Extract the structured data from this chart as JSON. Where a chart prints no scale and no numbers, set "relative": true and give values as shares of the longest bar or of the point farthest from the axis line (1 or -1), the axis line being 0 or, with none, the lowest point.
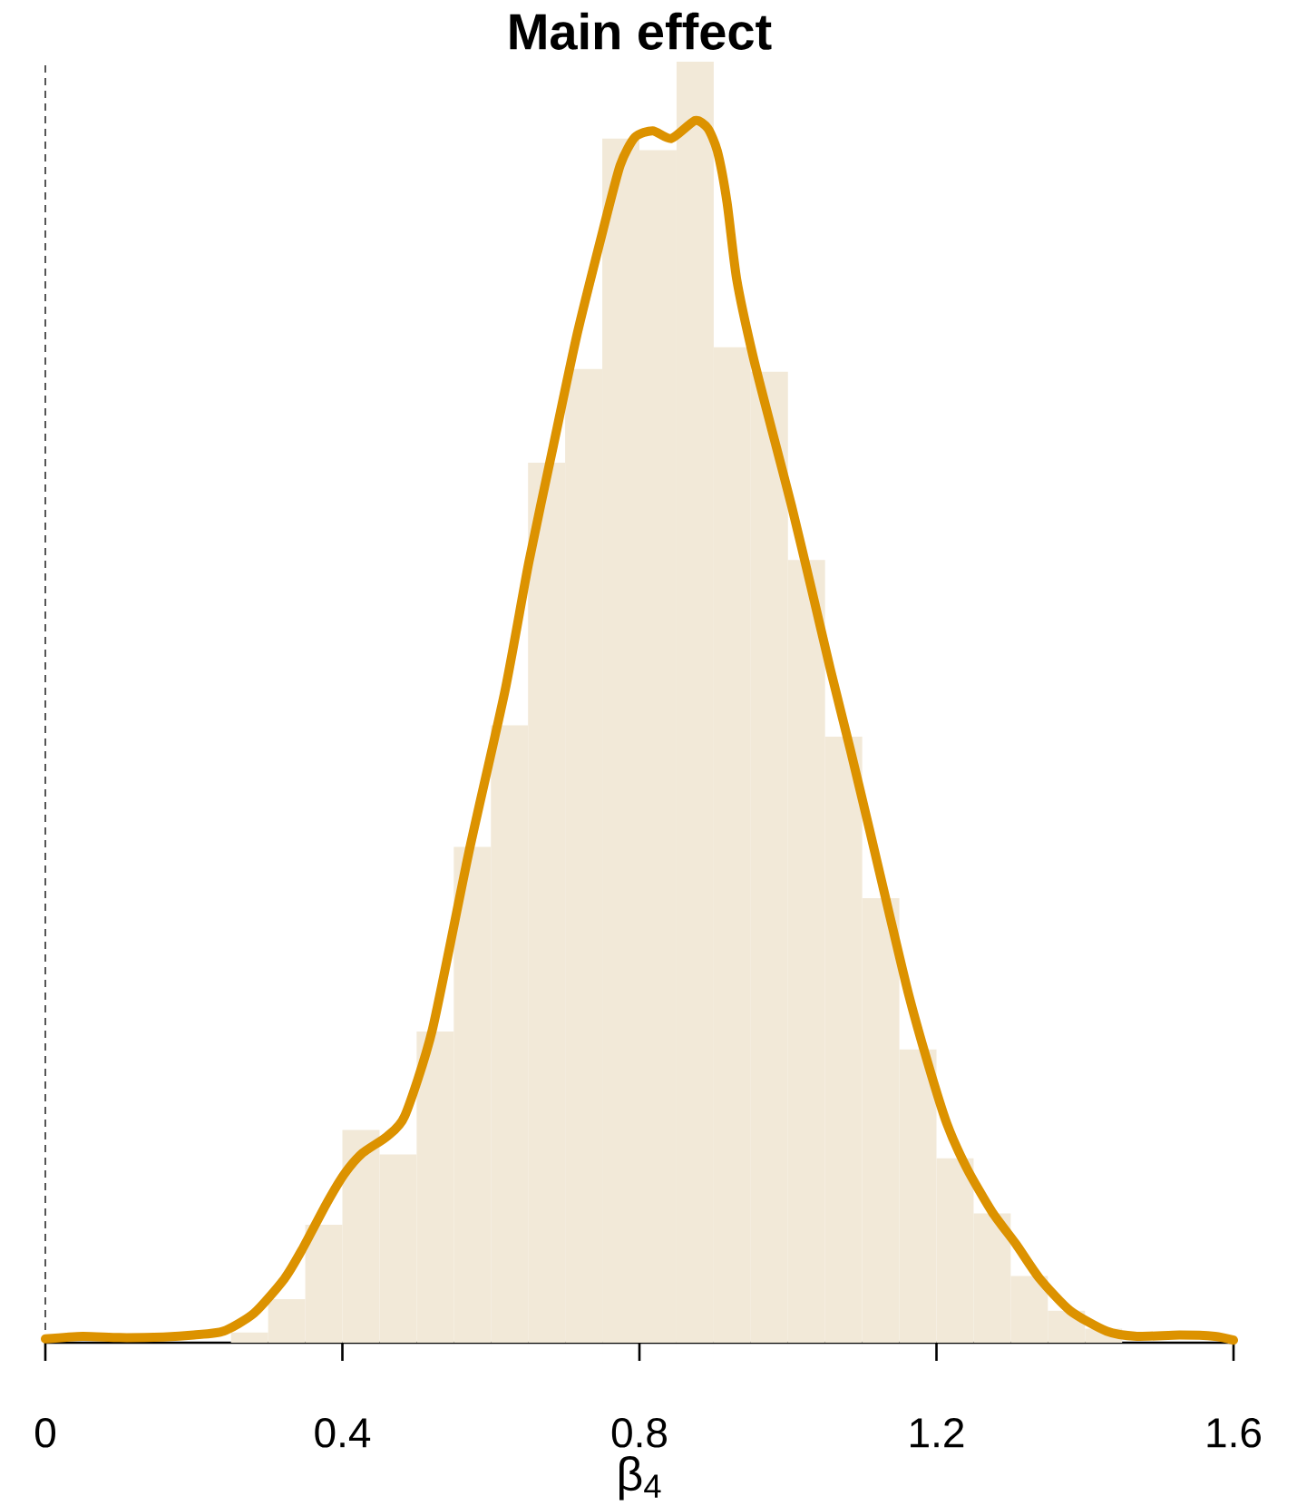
{
  "chart_data": {
    "type": "histogram",
    "title": "Main effect",
    "xlabel": "β$_{4}$",
    "relative": true,
    "bins": [
      0.25,
      0.3,
      0.35,
      0.4,
      0.45,
      0.5,
      0.55,
      0.6,
      0.65,
      0.7,
      0.75,
      0.8,
      0.85,
      0.9,
      0.95,
      1.0,
      1.05,
      1.1,
      1.15,
      1.2,
      1.25,
      1.3,
      1.35,
      1.4,
      1.45
    ],
    "xlim": [
      0,
      1.6
    ],
    "xticks": [
      0,
      0.4,
      0.8,
      1.2,
      1.6
    ],
    "series": [
      {
        "color": "#f2e9d8",
        "values": [
          0.008,
          0.034,
          0.092,
          0.166,
          0.147,
          0.243,
          0.387,
          0.482,
          0.687,
          0.76,
          0.94,
          0.931,
          1.0,
          0.777,
          0.758,
          0.611,
          0.473,
          0.347,
          0.229,
          0.144,
          0.101,
          0.052,
          0.025,
          0.011
        ]
      },
      {
        "type": "line",
        "color": "#dc9200",
        "x": [
          0,
          0.05,
          0.1,
          0.159,
          0.2,
          0.24,
          0.281,
          0.322,
          0.346,
          0.379,
          0.403,
          0.427,
          0.46,
          0.484,
          0.521,
          0.57,
          0.619,
          0.651,
          0.684,
          0.716,
          0.749,
          0.774,
          0.794,
          0.818,
          0.843,
          0.875,
          0.892,
          0.905,
          0.918,
          0.931,
          0.953,
          0.979,
          1.005,
          1.031,
          1.057,
          1.084,
          1.11,
          1.136,
          1.162,
          1.188,
          1.214,
          1.241,
          1.275,
          1.307,
          1.339,
          1.38,
          1.429,
          1.47,
          1.527,
          1.575,
          1.6
        ],
        "values": [
          0.003,
          0.005,
          0.004,
          0.0045,
          0.006,
          0.009,
          0.023,
          0.05,
          0.073,
          0.109,
          0.132,
          0.148,
          0.161,
          0.177,
          0.244,
          0.382,
          0.509,
          0.609,
          0.7,
          0.787,
          0.864,
          0.919,
          0.941,
          0.946,
          0.94,
          0.954,
          0.948,
          0.93,
          0.89,
          0.83,
          0.77,
          0.711,
          0.653,
          0.59,
          0.526,
          0.463,
          0.4,
          0.336,
          0.273,
          0.219,
          0.171,
          0.136,
          0.102,
          0.077,
          0.05,
          0.025,
          0.009,
          0.005,
          0.006,
          0.005,
          0.002
        ]
      }
    ],
    "ref_lines": [
      {
        "axis": "x",
        "value": 0,
        "color": "#555555",
        "line_style": "dashed"
      }
    ]
  }
}
